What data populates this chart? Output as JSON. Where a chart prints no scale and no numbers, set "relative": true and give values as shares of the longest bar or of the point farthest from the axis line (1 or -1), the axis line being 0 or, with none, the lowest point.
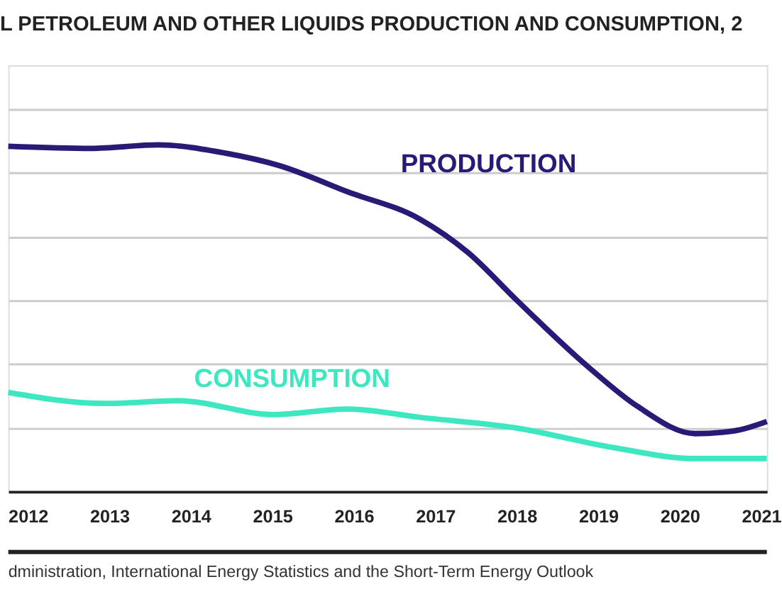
{
  "chart_data": {
    "type": "line",
    "title": "L PETROLEUM AND OTHER LIQUIDS PRODUCTION AND CONSUMPTION, 2",
    "relative": true,
    "grid": "y",
    "legend": false,
    "marker": "none",
    "line_style": "solid",
    "xlim": [
      2011.76,
      2021.07
    ],
    "xticks": [
      2012,
      2013,
      2014,
      2015,
      2016,
      2017,
      2018,
      2019,
      2020,
      2021
    ],
    "series": [
      {
        "name": "PRODUCTION",
        "color": "#2a1a78",
        "x": [
          2011.76,
          2012.78,
          2013.6,
          2014.43,
          2015.09,
          2015.92,
          2016.81,
          2017.4,
          2018.0,
          2018.89,
          2019.48,
          2020.19,
          2020.67,
          2021.07
        ],
        "values": [
          0.996,
          0.99,
          1.0,
          0.976,
          0.94,
          0.865,
          0.786,
          0.69,
          0.552,
          0.357,
          0.246,
          0.167,
          0.175,
          0.202
        ]
      },
      {
        "name": "CONSUMPTION",
        "color": "#3de8c0",
        "x": [
          2011.76,
          2012.95,
          2013.84,
          2015.02,
          2015.92,
          2016.81,
          2018.0,
          2019.18,
          2020.19,
          2021.07
        ],
        "values": [
          0.286,
          0.254,
          0.262,
          0.222,
          0.238,
          0.214,
          0.183,
          0.127,
          0.095,
          0.095
        ]
      }
    ],
    "annotations": [
      "dministration, International Energy Statistics and the Short-Term Energy Outlook"
    ]
  }
}
